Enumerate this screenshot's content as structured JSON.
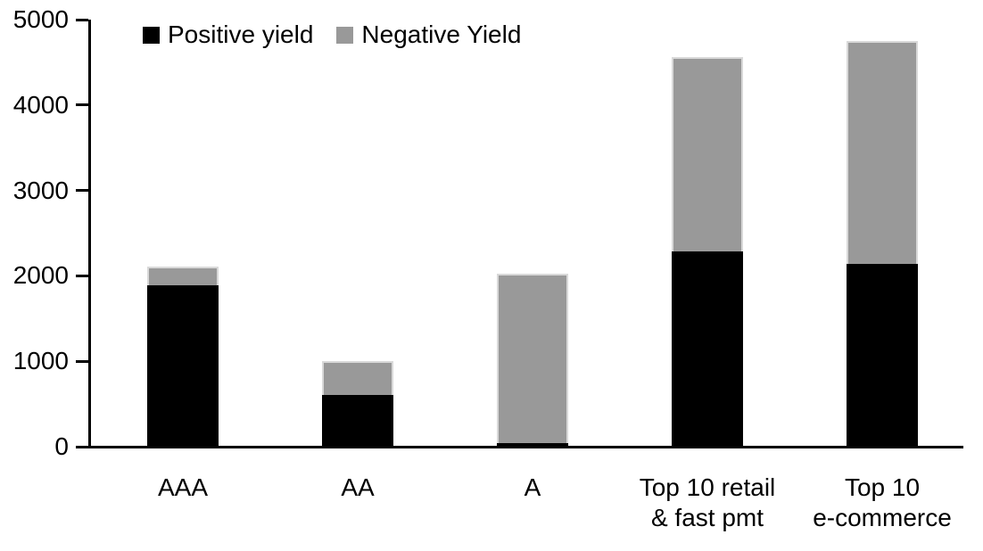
{
  "colors": {
    "positive_series": "#000000",
    "negative_series": "#999999",
    "axis": "#000000",
    "background": "#ffffff",
    "gray_bar_border": "#d9d9d9"
  },
  "legend": {
    "items": [
      {
        "label": "Positive yield",
        "swatch": "black-square-icon"
      },
      {
        "label": "Negative Yield",
        "swatch": "gray-square-icon"
      }
    ]
  },
  "chart_data": {
    "type": "bar",
    "stacked": true,
    "title": "",
    "xlabel": "",
    "ylabel": "",
    "categories": [
      "AAA",
      "AA",
      "A",
      "Top 10 retail\n& fast pmt",
      "Top 10\ne-commerce"
    ],
    "series": [
      {
        "name": "Positive yield",
        "color": "#000000",
        "values": [
          1890,
          610,
          45,
          2290,
          2140
        ]
      },
      {
        "name": "Negative Yield",
        "color": "#999999",
        "values": [
          220,
          390,
          1985,
          2270,
          2610
        ]
      }
    ],
    "totals": [
      2110,
      1000,
      2030,
      4560,
      4750
    ],
    "ylim": [
      0,
      5000
    ],
    "yticks": [
      0,
      1000,
      2000,
      3000,
      4000,
      5000
    ],
    "grid": false,
    "legend_position": "top"
  }
}
